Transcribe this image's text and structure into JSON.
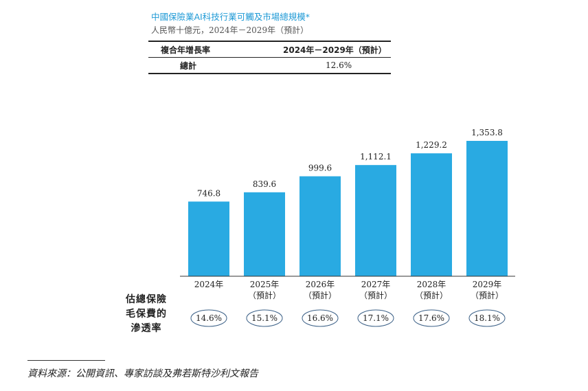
{
  "header": {
    "title": "中國保險業AI科技行業可觸及市場總規模*",
    "subtitle": "人民幣十億元，2024年－2029年（預計）"
  },
  "cagr_table": {
    "col1_header": "複合年增長率",
    "col2_header": "2024年－2029年（預計）",
    "row_label": "總計",
    "row_value": "12.6%"
  },
  "penetration": {
    "title_lines": [
      "估總保險",
      "毛保費的",
      "滲透率"
    ]
  },
  "source": "資料來源：公開資訊、專家訪談及弗若斯特沙利文報告",
  "colors": {
    "bar": "#29aae2",
    "title": "#1f9ad6",
    "ellipse": "#3a5f86"
  },
  "chart_data": {
    "type": "bar",
    "title": "中國保險業AI科技行業可觸及市場總規模*",
    "categories": [
      "2024年",
      "2025年",
      "2026年",
      "2027年",
      "2028年",
      "2029年"
    ],
    "category_sublabels": [
      "",
      "（預計）",
      "（預計）",
      "（預計）",
      "（預計）",
      "（預計）"
    ],
    "values": [
      746.8,
      839.6,
      999.6,
      1112.1,
      1229.2,
      1353.8
    ],
    "value_labels": [
      "746.8",
      "839.6",
      "999.6",
      "1,112.1",
      "1,229.2",
      "1,353.8"
    ],
    "penetration_labels": [
      "14.6%",
      "15.1%",
      "16.6%",
      "17.1%",
      "17.6%",
      "18.1%"
    ],
    "ylim": [
      0,
      1353.8
    ],
    "grid": false,
    "xlabel": "",
    "ylabel": ""
  }
}
